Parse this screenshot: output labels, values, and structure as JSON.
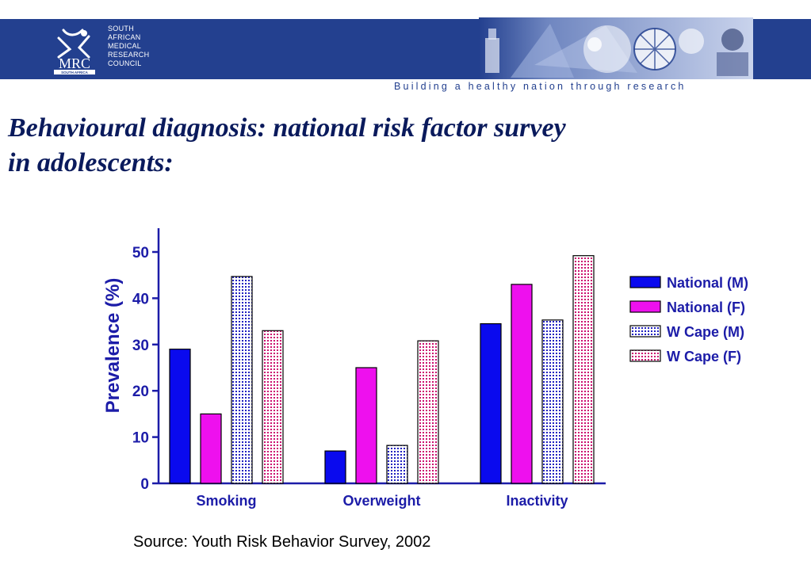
{
  "header": {
    "org_lines": [
      "SOUTH",
      "AFRICAN",
      "MEDICAL",
      "RESEARCH",
      "COUNCIL"
    ],
    "logo_text": "MRC",
    "logo_subtext": "SOUTH AFRICA",
    "tagline": "Building a healthy nation through research",
    "banner_color": "#23408f"
  },
  "slide": {
    "title_line1": "Behavioural diagnosis: national risk factor survey",
    "title_line2": "in adolescents:",
    "source": "Source: Youth Risk Behavior Survey, 2002"
  },
  "chart_data": {
    "type": "bar",
    "title": "",
    "xlabel": "",
    "ylabel": "Prevalence (%)",
    "ylim": [
      0,
      55
    ],
    "yticks": [
      0,
      10,
      20,
      30,
      40,
      50
    ],
    "categories": [
      "Smoking",
      "Overweight",
      "Inactivity"
    ],
    "series": [
      {
        "name": "National (M)",
        "values": [
          29,
          7,
          34.5
        ],
        "color": "#0a0aee",
        "pattern": "solid"
      },
      {
        "name": "National (F)",
        "values": [
          15,
          25,
          43
        ],
        "color": "#ee10ee",
        "pattern": "solid"
      },
      {
        "name": "W Cape (M)",
        "values": [
          44.7,
          8.2,
          35.3
        ],
        "color": "#2020c0",
        "pattern": "dotted"
      },
      {
        "name": "W Cape (F)",
        "values": [
          33,
          30.8,
          49.2
        ],
        "color": "#cc1070",
        "pattern": "dotted"
      }
    ],
    "legend_position": "right",
    "grid": false
  }
}
